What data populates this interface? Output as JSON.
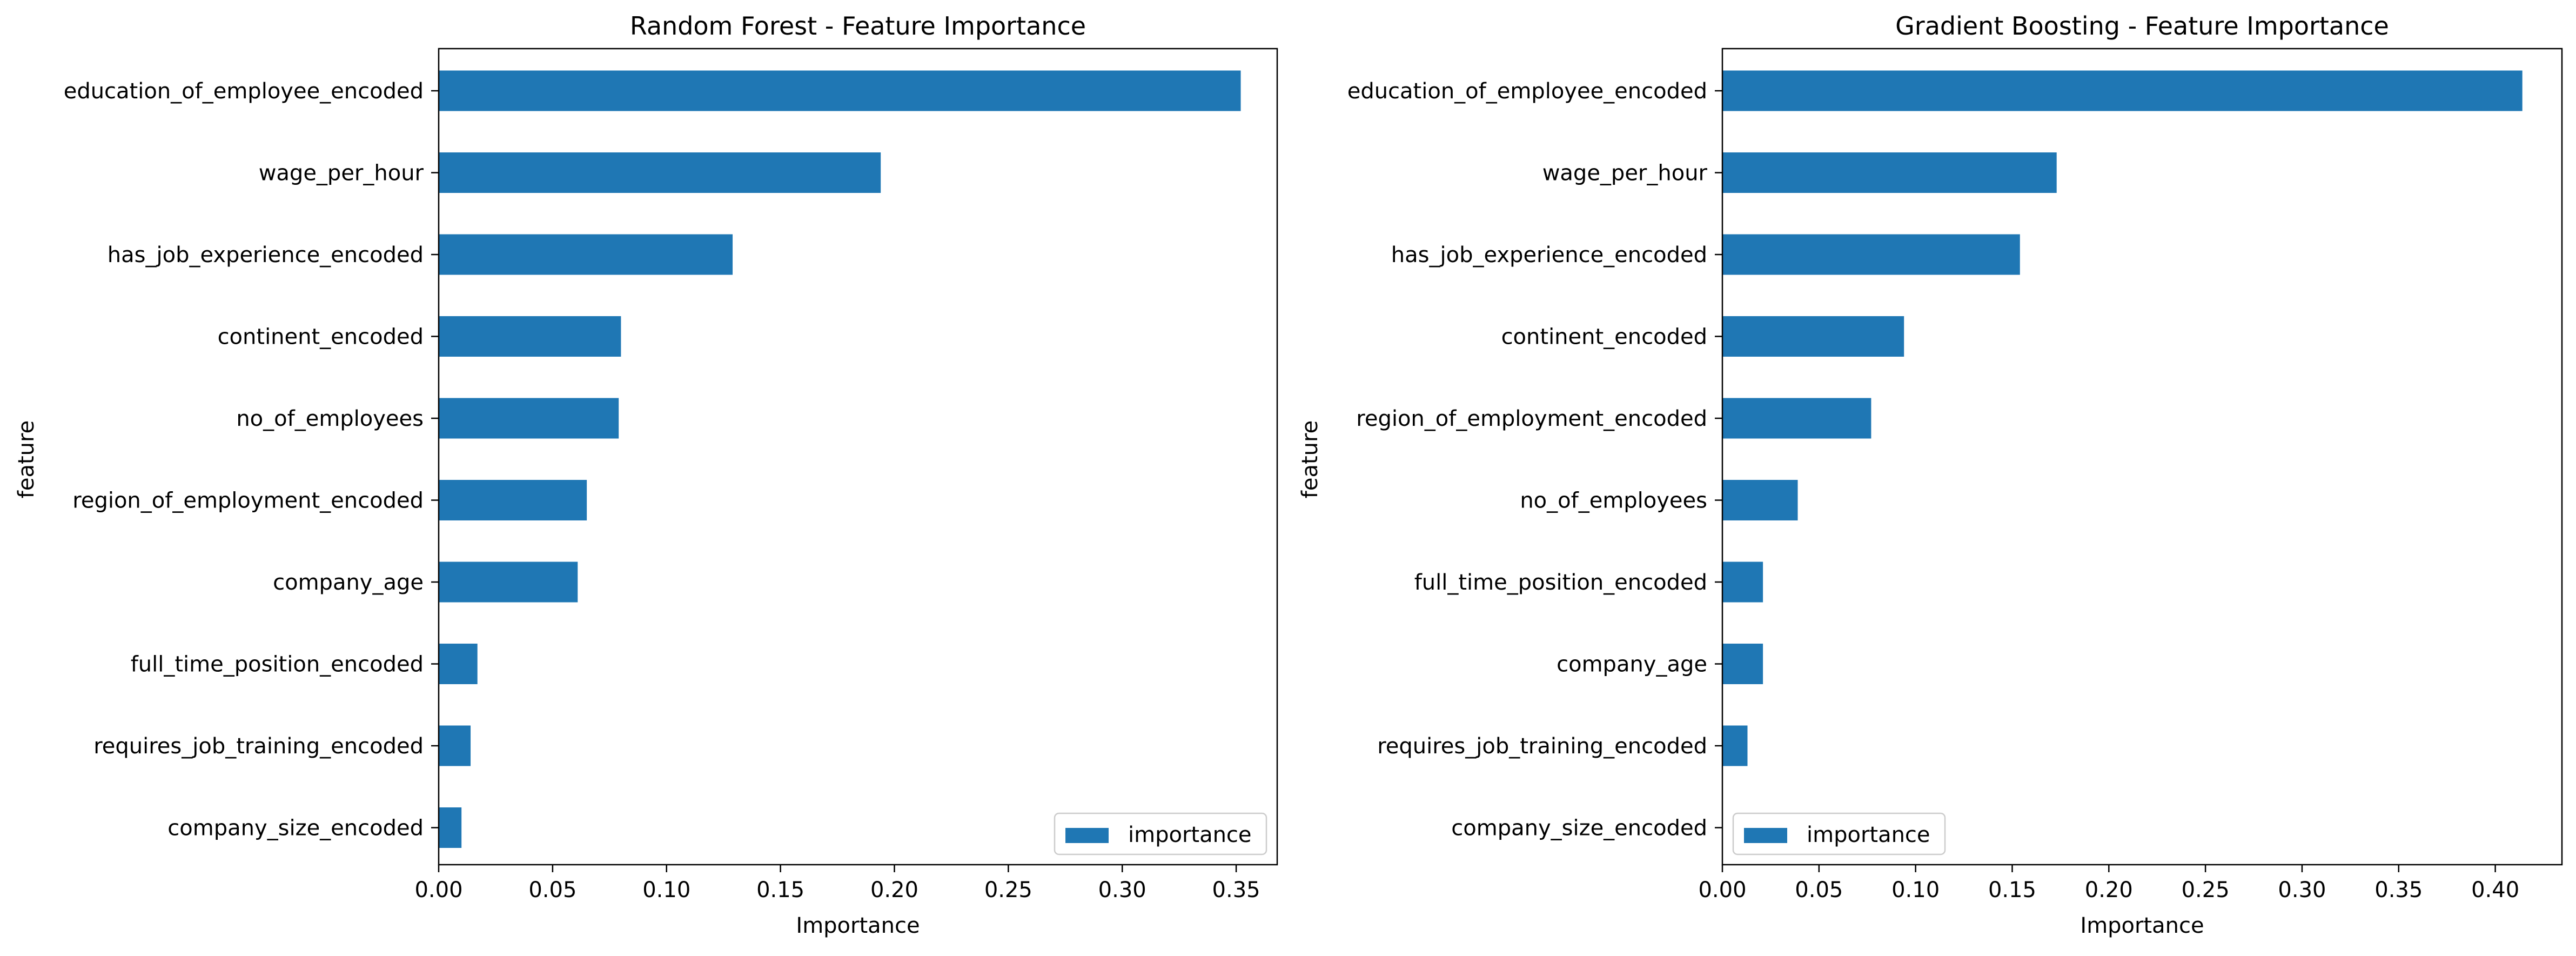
{
  "colors": {
    "bar": "#1f77b4",
    "axis": "#000000",
    "legend_frame": "#cccccc"
  },
  "chart_data": [
    {
      "type": "bar",
      "orientation": "horizontal",
      "title": "Random Forest - Feature Importance",
      "xlabel": "Importance",
      "ylabel": "feature",
      "xlim": [
        0,
        0.368
      ],
      "xticks": [
        "0.00",
        "0.05",
        "0.10",
        "0.15",
        "0.20",
        "0.25",
        "0.30",
        "0.35"
      ],
      "legend": {
        "position": "lower-right",
        "entries": [
          "importance"
        ]
      },
      "grid": false,
      "categories": [
        "education_of_employee_encoded",
        "wage_per_hour",
        "has_job_experience_encoded",
        "continent_encoded",
        "no_of_employees",
        "region_of_employment_encoded",
        "company_age",
        "full_time_position_encoded",
        "requires_job_training_encoded",
        "company_size_encoded"
      ],
      "series": [
        {
          "name": "importance",
          "values": [
            0.352,
            0.194,
            0.129,
            0.08,
            0.079,
            0.065,
            0.061,
            0.017,
            0.014,
            0.01
          ]
        }
      ]
    },
    {
      "type": "bar",
      "orientation": "horizontal",
      "title": "Gradient Boosting - Feature Importance",
      "xlabel": "Importance",
      "ylabel": "feature",
      "xlim": [
        0,
        0.4345
      ],
      "xticks": [
        "0.00",
        "0.05",
        "0.10",
        "0.15",
        "0.20",
        "0.25",
        "0.30",
        "0.35",
        "0.40"
      ],
      "legend": {
        "position": "lower-left",
        "entries": [
          "importance"
        ]
      },
      "grid": false,
      "categories": [
        "education_of_employee_encoded",
        "wage_per_hour",
        "has_job_experience_encoded",
        "continent_encoded",
        "region_of_employment_encoded",
        "no_of_employees",
        "full_time_position_encoded",
        "company_age",
        "requires_job_training_encoded",
        "company_size_encoded"
      ],
      "series": [
        {
          "name": "importance",
          "values": [
            0.414,
            0.173,
            0.154,
            0.094,
            0.077,
            0.039,
            0.021,
            0.021,
            0.013,
            0.0
          ]
        }
      ]
    }
  ]
}
